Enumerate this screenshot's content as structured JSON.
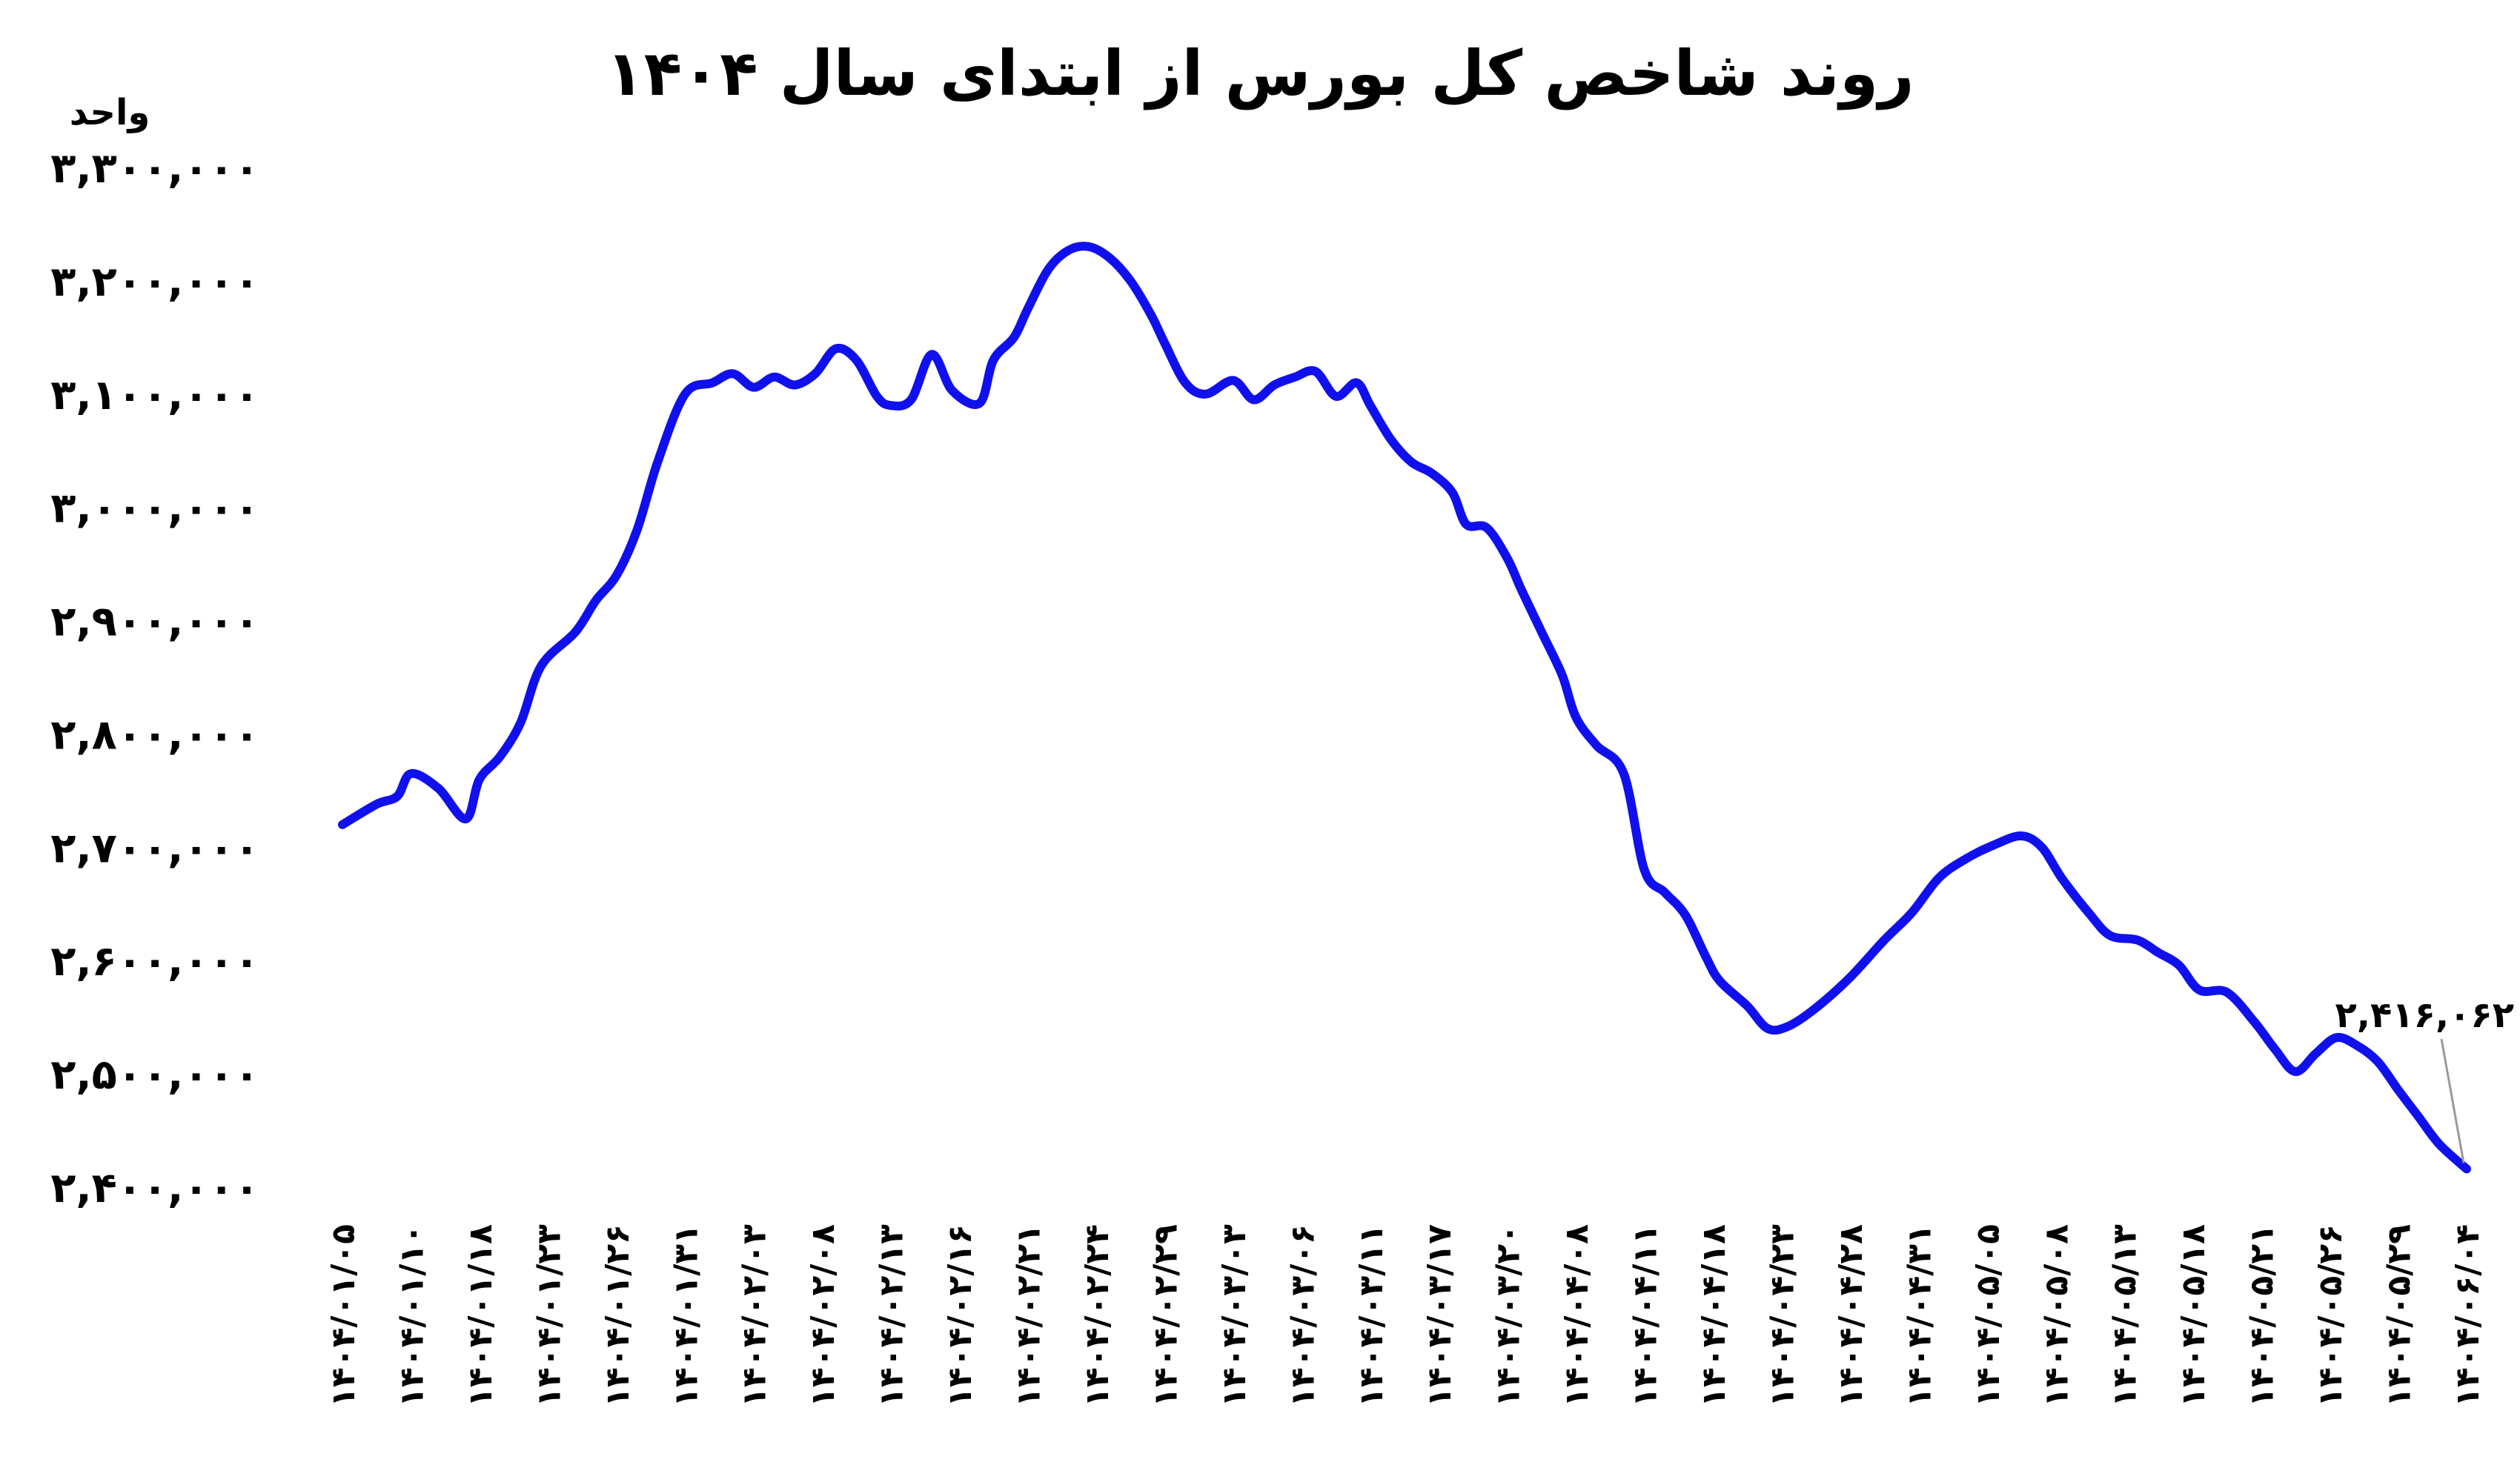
{
  "chart_data": {
    "type": "line",
    "title": "روند شاخص کل بورس از ابتدای سال ۱۴۰۴",
    "ylabel": "واحد",
    "xlabel": "",
    "ylim": [
      2400000,
      3300000
    ],
    "y_ticks": [
      "۲,۴۰۰,۰۰۰",
      "۲,۵۰۰,۰۰۰",
      "۲,۶۰۰,۰۰۰",
      "۲,۷۰۰,۰۰۰",
      "۲,۸۰۰,۰۰۰",
      "۲,۹۰۰,۰۰۰",
      "۳,۰۰۰,۰۰۰",
      "۳,۱۰۰,۰۰۰",
      "۳,۲۰۰,۰۰۰",
      "۳,۳۰۰,۰۰۰"
    ],
    "categories": [
      "۱۴۰۴/۰۱/۰۵",
      "۱۴۰۴/۰۱/۱۰",
      "۱۴۰۴/۰۱/۱۸",
      "۱۴۰۴/۰۱/۲۳",
      "۱۴۰۴/۰۱/۲۶",
      "۱۴۰۴/۰۱/۳۱",
      "۱۴۰۴/۰۲/۰۳",
      "۱۴۰۴/۰۲/۰۸",
      "۱۴۰۴/۰۲/۱۳",
      "۱۴۰۴/۰۲/۱۶",
      "۱۴۰۴/۰۲/۲۱",
      "۱۴۰۴/۰۲/۲۴",
      "۱۴۰۴/۰۲/۲۹",
      "۱۴۰۴/۰۳/۰۳",
      "۱۴۰۴/۰۳/۰۶",
      "۱۴۰۴/۰۳/۱۱",
      "۱۴۰۴/۰۳/۱۷",
      "۱۴۰۴/۰۳/۲۰",
      "۱۴۰۴/۰۴/۰۸",
      "۱۴۰۴/۰۴/۱۱",
      "۱۴۰۴/۰۴/۱۸",
      "۱۴۰۴/۰۴/۲۳",
      "۱۴۰۴/۰۴/۲۸",
      "۱۴۰۴/۰۴/۳۱",
      "۱۴۰۴/۰۵/۰۵",
      "۱۴۰۴/۰۵/۰۸",
      "۱۴۰۴/۰۵/۱۳",
      "۱۴۰۴/۰۵/۱۸",
      "۱۴۰۴/۰۵/۲۱",
      "۱۴۰۴/۰۵/۲۶",
      "۱۴۰۴/۰۵/۲۹",
      "۱۴۰۴/۰۶/۰۴"
    ],
    "series": [
      {
        "color": "#1010ee",
        "x": [
          0,
          0.5,
          0.8,
          1.0,
          1.4,
          1.8,
          2.0,
          2.3,
          2.6,
          2.9,
          3.4,
          3.7,
          4.0,
          4.3,
          4.6,
          5.0,
          5.4,
          5.7,
          6.0,
          6.3,
          6.6,
          6.9,
          7.2,
          7.5,
          7.8,
          8.0,
          8.3,
          8.6,
          8.9,
          9.3,
          9.5,
          9.8,
          10.0,
          10.3,
          10.6,
          10.9,
          11.2,
          11.5,
          11.8,
          12.0,
          12.3,
          12.6,
          13.0,
          13.3,
          13.6,
          13.9,
          14.2,
          14.5,
          14.8,
          15.0,
          15.3,
          15.6,
          15.9,
          16.2,
          16.4,
          16.7,
          17.0,
          17.2,
          17.5,
          17.8,
          18.0,
          18.3,
          18.7,
          19.0,
          19.3,
          19.6,
          19.9,
          20.1,
          20.5,
          20.8,
          21.1,
          21.5,
          22.0,
          22.5,
          22.9,
          23.3,
          23.7,
          24.1,
          24.5,
          24.8,
          25.1,
          25.5,
          25.8,
          26.2,
          26.5,
          26.8,
          27.1,
          27.5,
          27.9,
          28.2,
          28.5,
          28.8,
          29.1,
          29.4,
          29.7,
          30.0,
          30.3,
          30.6,
          31.0
        ],
        "values": [
          2720000,
          2738000,
          2745000,
          2765000,
          2752000,
          2725000,
          2760000,
          2780000,
          2810000,
          2860000,
          2890000,
          2918000,
          2940000,
          2980000,
          3040000,
          3100000,
          3110000,
          3118000,
          3106000,
          3115000,
          3108000,
          3118000,
          3140000,
          3130000,
          3098000,
          3090000,
          3095000,
          3135000,
          3103000,
          3092000,
          3130000,
          3150000,
          3175000,
          3210000,
          3227000,
          3230000,
          3220000,
          3200000,
          3170000,
          3145000,
          3110000,
          3100000,
          3112000,
          3095000,
          3108000,
          3115000,
          3120000,
          3098000,
          3110000,
          3090000,
          3060000,
          3040000,
          3030000,
          3013000,
          2985000,
          2982000,
          2955000,
          2928000,
          2890000,
          2852000,
          2815000,
          2790000,
          2765000,
          2680000,
          2660000,
          2640000,
          2603000,
          2582000,
          2560000,
          2540000,
          2542000,
          2558000,
          2585000,
          2618000,
          2642000,
          2673000,
          2690000,
          2702000,
          2710000,
          2700000,
          2672000,
          2641000,
          2622000,
          2618000,
          2607000,
          2596000,
          2574000,
          2572000,
          2546000,
          2522000,
          2502000,
          2518000,
          2532000,
          2525000,
          2511000,
          2486000,
          2462000,
          2438000,
          2416062
        ]
      }
    ],
    "annotation": {
      "text": "۲,۴۱۶,۰۶۲",
      "value": 2416062
    },
    "grid": false,
    "legend": "none"
  }
}
